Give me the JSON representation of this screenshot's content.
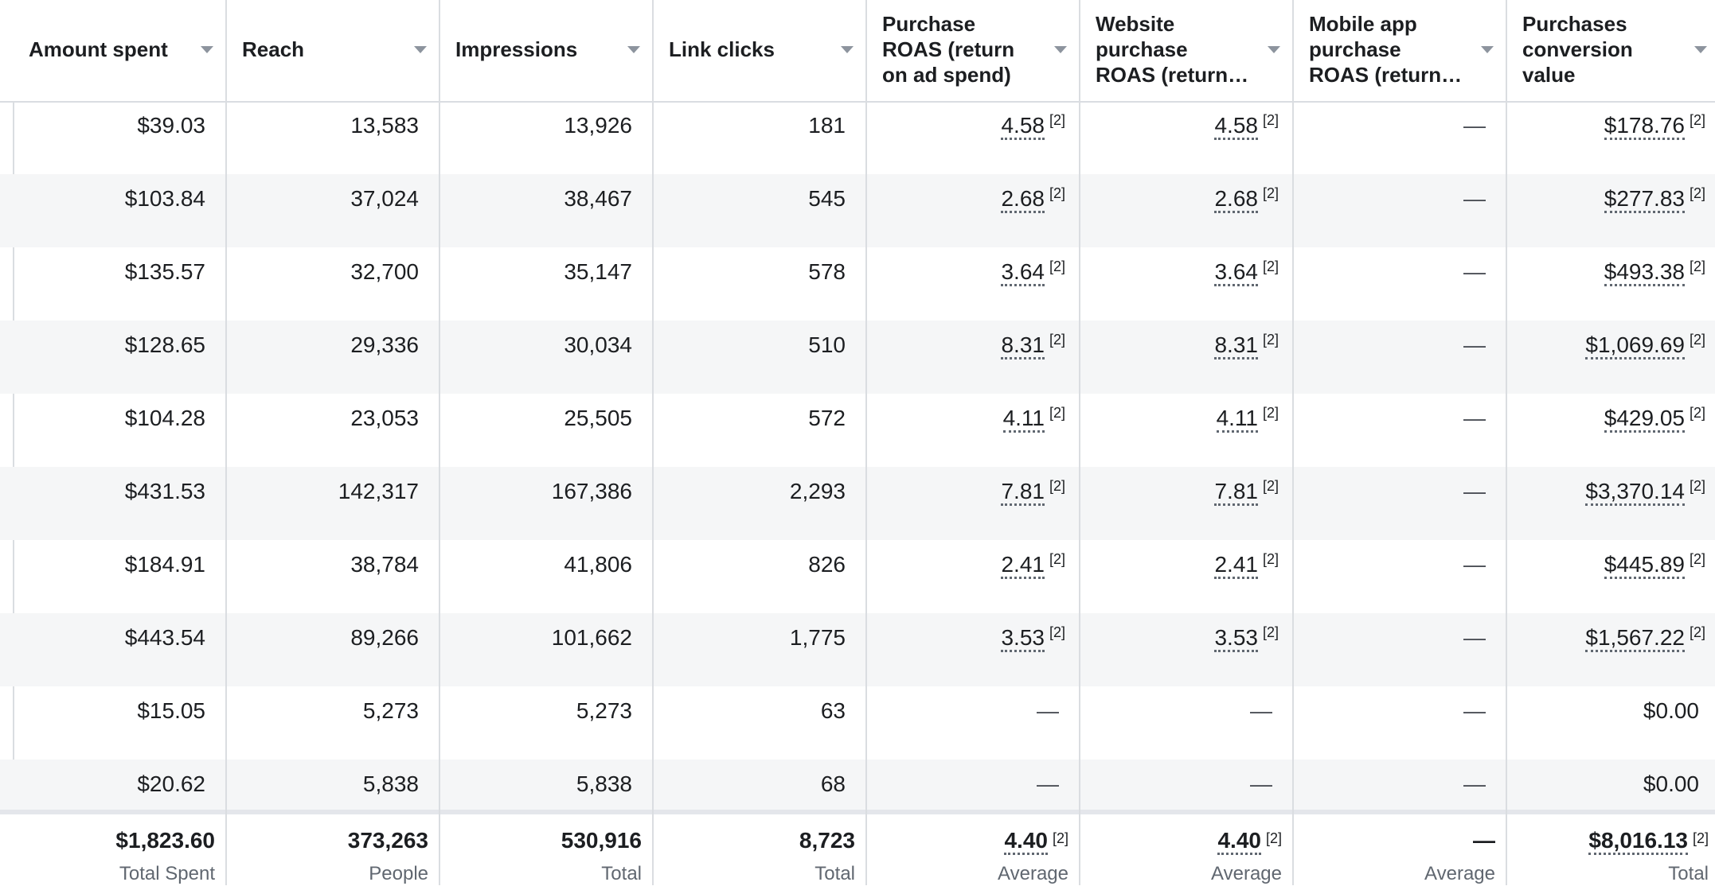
{
  "columns": [
    {
      "key": "amount_spent",
      "label": "Amount spent"
    },
    {
      "key": "reach",
      "label": "Reach"
    },
    {
      "key": "impressions",
      "label": "Impressions"
    },
    {
      "key": "link_clicks",
      "label": "Link clicks"
    },
    {
      "key": "purchase_roas",
      "label": "Purchase\nROAS (return\non ad spend)"
    },
    {
      "key": "website_purchase_roas",
      "label": "Website\npurchase\nROAS (return…"
    },
    {
      "key": "mobile_app_purchase_roas",
      "label": "Mobile app\npurchase\nROAS (return…"
    },
    {
      "key": "purchases_conversion_value",
      "label": "Purchases\nconversion\nvalue"
    }
  ],
  "reference_marker": "[2]",
  "rows": [
    {
      "amount_spent": "$39.03",
      "reach": "13,583",
      "impressions": "13,926",
      "link_clicks": "181",
      "purchase_roas": "4.58",
      "website_purchase_roas": "4.58",
      "mobile_app_purchase_roas": "—",
      "purchases_conversion_value": "$178.76"
    },
    {
      "amount_spent": "$103.84",
      "reach": "37,024",
      "impressions": "38,467",
      "link_clicks": "545",
      "purchase_roas": "2.68",
      "website_purchase_roas": "2.68",
      "mobile_app_purchase_roas": "—",
      "purchases_conversion_value": "$277.83"
    },
    {
      "amount_spent": "$135.57",
      "reach": "32,700",
      "impressions": "35,147",
      "link_clicks": "578",
      "purchase_roas": "3.64",
      "website_purchase_roas": "3.64",
      "mobile_app_purchase_roas": "—",
      "purchases_conversion_value": "$493.38"
    },
    {
      "amount_spent": "$128.65",
      "reach": "29,336",
      "impressions": "30,034",
      "link_clicks": "510",
      "purchase_roas": "8.31",
      "website_purchase_roas": "8.31",
      "mobile_app_purchase_roas": "—",
      "purchases_conversion_value": "$1,069.69"
    },
    {
      "amount_spent": "$104.28",
      "reach": "23,053",
      "impressions": "25,505",
      "link_clicks": "572",
      "purchase_roas": "4.11",
      "website_purchase_roas": "4.11",
      "mobile_app_purchase_roas": "—",
      "purchases_conversion_value": "$429.05"
    },
    {
      "amount_spent": "$431.53",
      "reach": "142,317",
      "impressions": "167,386",
      "link_clicks": "2,293",
      "purchase_roas": "7.81",
      "website_purchase_roas": "7.81",
      "mobile_app_purchase_roas": "—",
      "purchases_conversion_value": "$3,370.14"
    },
    {
      "amount_spent": "$184.91",
      "reach": "38,784",
      "impressions": "41,806",
      "link_clicks": "826",
      "purchase_roas": "2.41",
      "website_purchase_roas": "2.41",
      "mobile_app_purchase_roas": "—",
      "purchases_conversion_value": "$445.89"
    },
    {
      "amount_spent": "$443.54",
      "reach": "89,266",
      "impressions": "101,662",
      "link_clicks": "1,775",
      "purchase_roas": "3.53",
      "website_purchase_roas": "3.53",
      "mobile_app_purchase_roas": "—",
      "purchases_conversion_value": "$1,567.22"
    },
    {
      "amount_spent": "$15.05",
      "reach": "5,273",
      "impressions": "5,273",
      "link_clicks": "63",
      "purchase_roas": "—",
      "website_purchase_roas": "—",
      "mobile_app_purchase_roas": "—",
      "purchases_conversion_value": "$0.00"
    },
    {
      "amount_spent": "$20.62",
      "reach": "5,838",
      "impressions": "5,838",
      "link_clicks": "68",
      "purchase_roas": "—",
      "website_purchase_roas": "—",
      "mobile_app_purchase_roas": "—",
      "purchases_conversion_value": "$0.00"
    }
  ],
  "totals": [
    {
      "value": "$1,823.60",
      "sub": "Total Spent"
    },
    {
      "value": "373,263",
      "sub": "People"
    },
    {
      "value": "530,916",
      "sub": "Total"
    },
    {
      "value": "8,723",
      "sub": "Total"
    },
    {
      "value": "4.40",
      "sub": "Average"
    },
    {
      "value": "4.40",
      "sub": "Average"
    },
    {
      "value": "—",
      "sub": "Average"
    },
    {
      "value": "$8,016.13",
      "sub": "Total"
    }
  ]
}
